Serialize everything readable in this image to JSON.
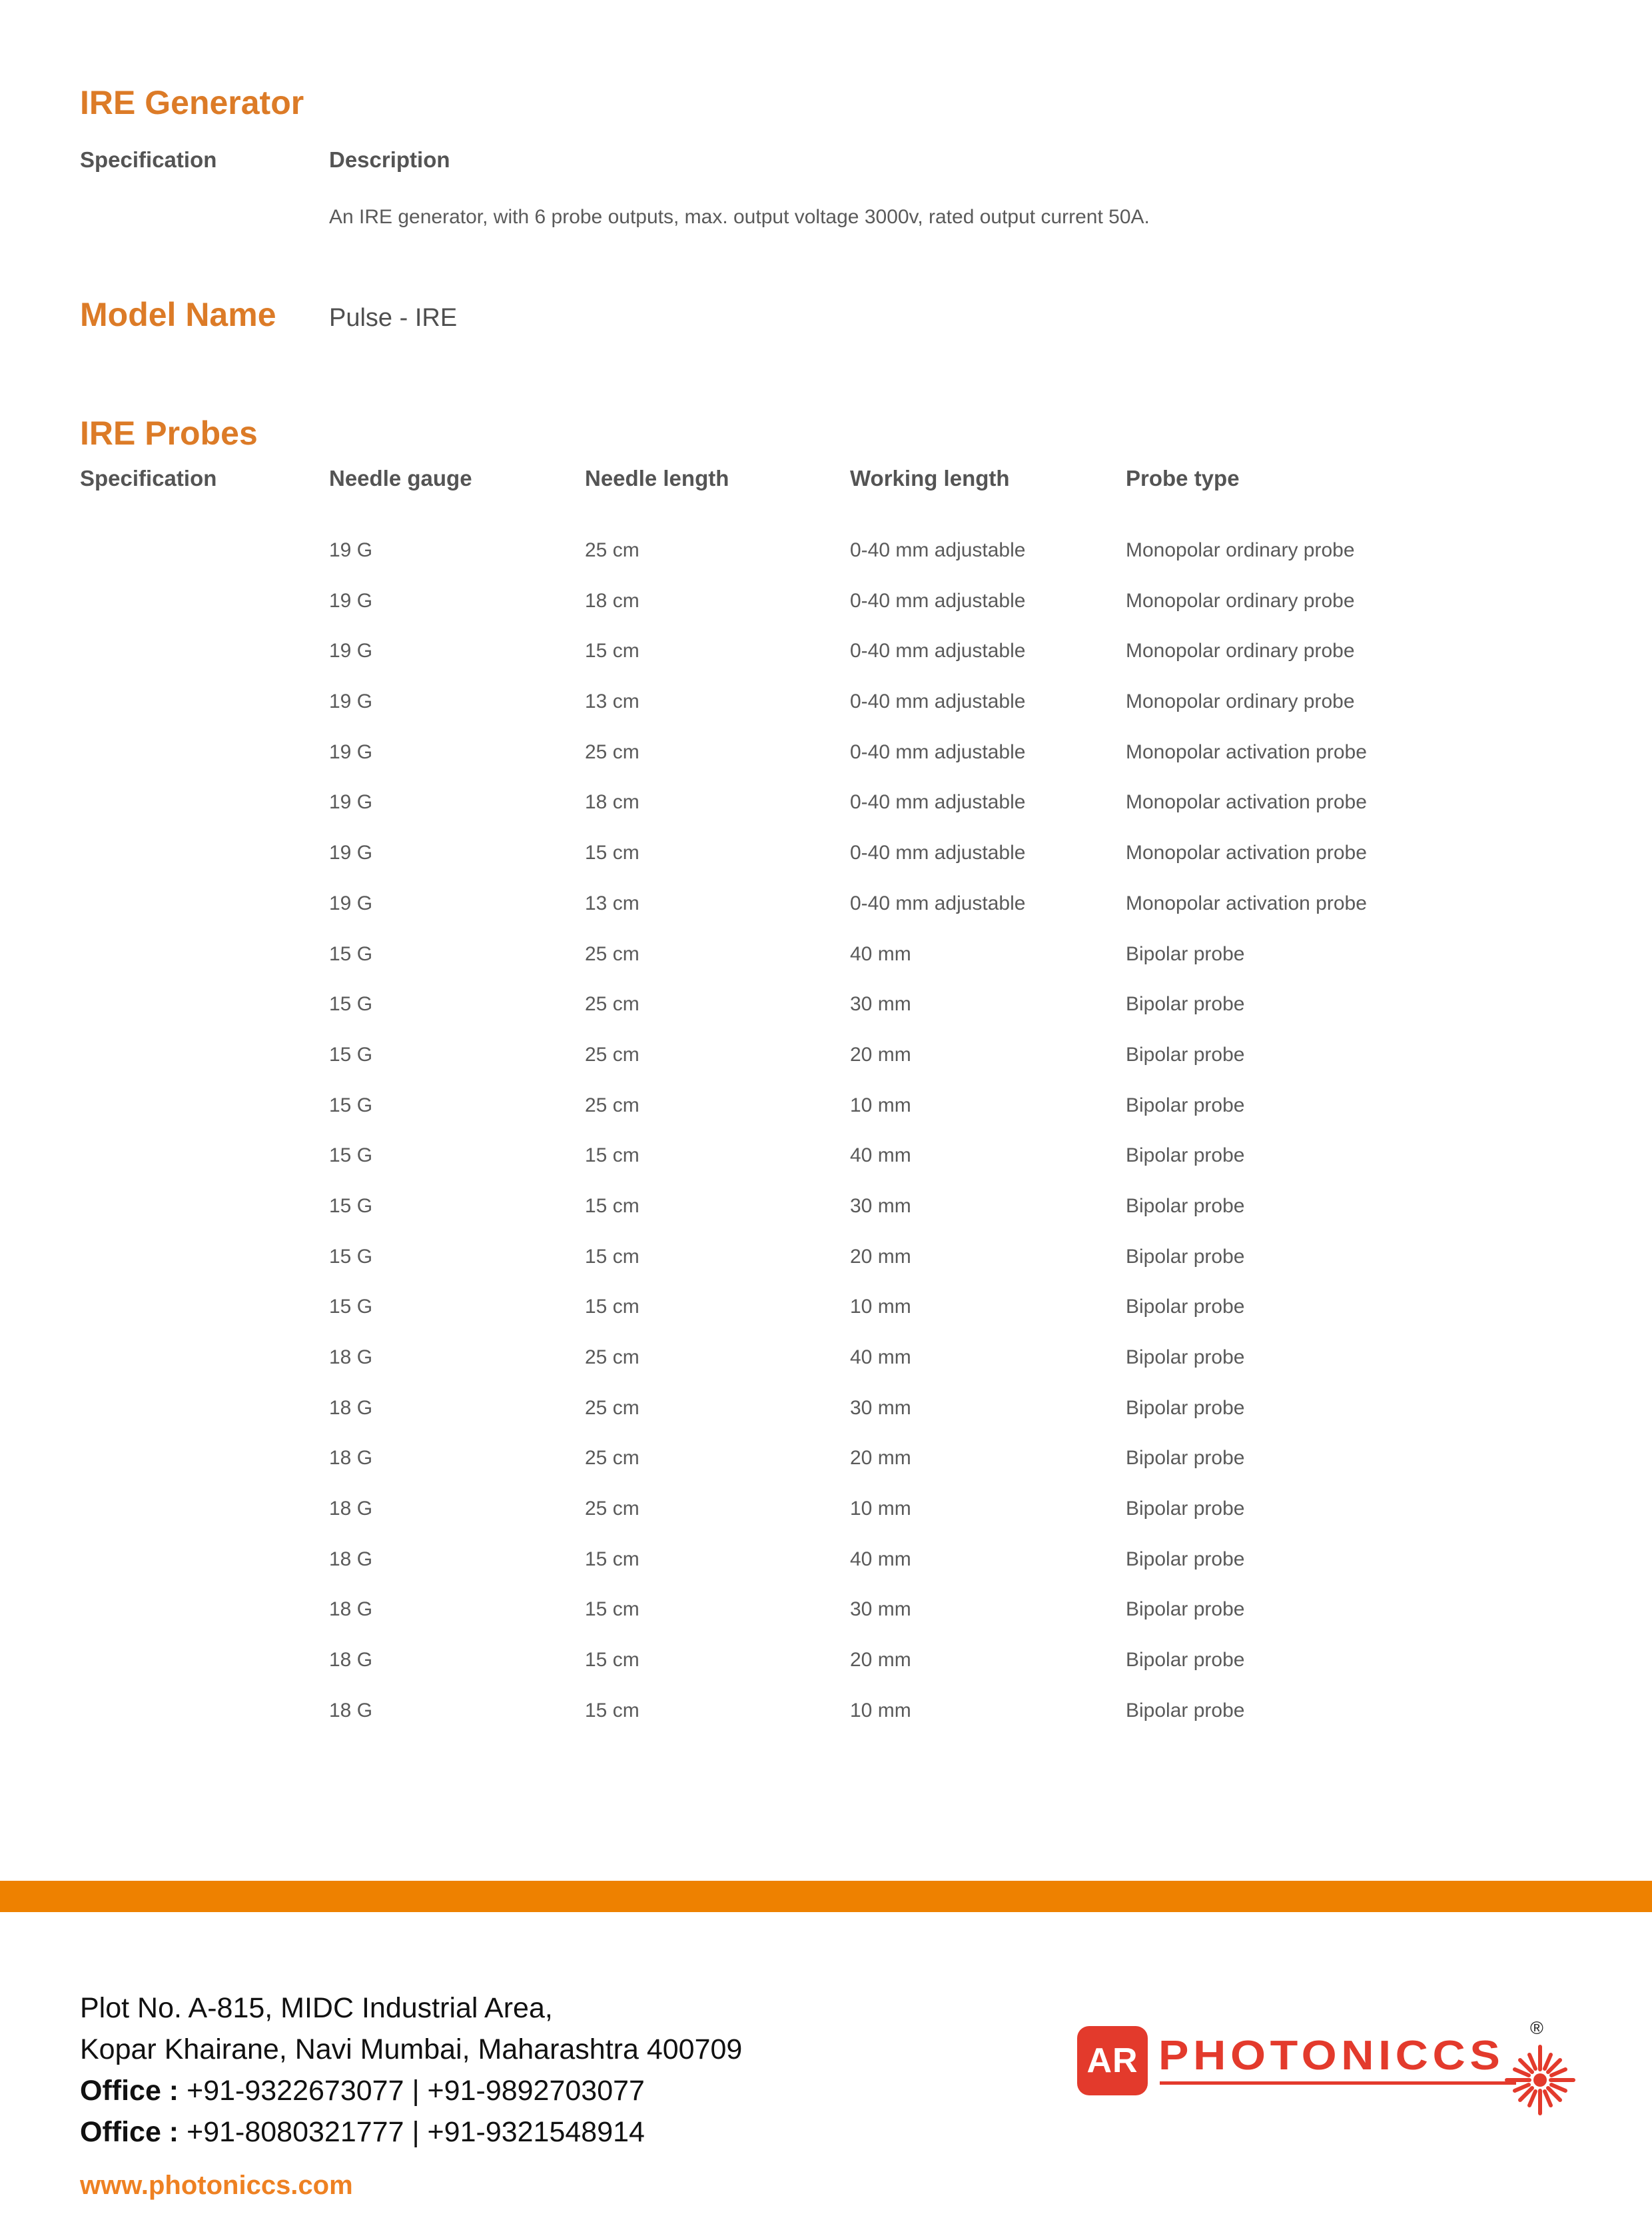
{
  "colors": {
    "heading_orange": "#DC7B27",
    "bar_orange": "#EE8100",
    "link_orange": "#EE8122",
    "logo_red": "#E33A2C",
    "table_header_gray": "#545454",
    "table_text_gray": "#5A5A5A"
  },
  "generator": {
    "heading": "IRE Generator",
    "col_specification": "Specification",
    "col_description": "Description",
    "description": "An IRE generator, with 6 probe outputs, max. output voltage 3000v, rated output current 50A.",
    "model_label": "Model Name",
    "model_value": "Pulse - IRE"
  },
  "probes": {
    "heading": "IRE Probes",
    "columns": [
      "Specification",
      "Needle gauge",
      "Needle length",
      "Working length",
      "Probe type"
    ],
    "rows": [
      [
        "19 G",
        "25 cm",
        "0-40 mm adjustable",
        "Monopolar ordinary probe"
      ],
      [
        "19 G",
        "18 cm",
        "0-40 mm adjustable",
        "Monopolar ordinary probe"
      ],
      [
        "19 G",
        "15 cm",
        "0-40 mm adjustable",
        "Monopolar ordinary probe"
      ],
      [
        "19 G",
        "13 cm",
        "0-40 mm adjustable",
        "Monopolar ordinary probe"
      ],
      [
        "19 G",
        "25 cm",
        "0-40 mm adjustable",
        "Monopolar activation probe"
      ],
      [
        "19 G",
        "18 cm",
        "0-40 mm adjustable",
        "Monopolar activation probe"
      ],
      [
        "19 G",
        "15 cm",
        "0-40 mm adjustable",
        "Monopolar activation probe"
      ],
      [
        "19 G",
        "13 cm",
        "0-40 mm adjustable",
        "Monopolar activation probe"
      ],
      [
        "15 G",
        "25 cm",
        "40 mm",
        "Bipolar probe"
      ],
      [
        "15 G",
        "25 cm",
        "30 mm",
        "Bipolar probe"
      ],
      [
        "15 G",
        "25 cm",
        "20 mm",
        "Bipolar probe"
      ],
      [
        "15 G",
        "25 cm",
        "10 mm",
        "Bipolar probe"
      ],
      [
        "15 G",
        "15 cm",
        "40 mm",
        "Bipolar probe"
      ],
      [
        "15 G",
        "15 cm",
        "30 mm",
        "Bipolar probe"
      ],
      [
        "15 G",
        "15 cm",
        "20 mm",
        "Bipolar probe"
      ],
      [
        "15 G",
        "15 cm",
        "10 mm",
        "Bipolar probe"
      ],
      [
        "18 G",
        "25 cm",
        "40 mm",
        "Bipolar probe"
      ],
      [
        "18 G",
        "25 cm",
        "30 mm",
        "Bipolar probe"
      ],
      [
        "18 G",
        "25 cm",
        "20 mm",
        "Bipolar probe"
      ],
      [
        "18 G",
        "25 cm",
        "10 mm",
        "Bipolar probe"
      ],
      [
        "18 G",
        "15 cm",
        "40 mm",
        "Bipolar probe"
      ],
      [
        "18 G",
        "15 cm",
        "30 mm",
        "Bipolar probe"
      ],
      [
        "18 G",
        "15 cm",
        "20 mm",
        "Bipolar probe"
      ],
      [
        "18 G",
        "15 cm",
        "10 mm",
        "Bipolar probe"
      ]
    ]
  },
  "footer": {
    "address_line1": "Plot No. A-815, MIDC Industrial Area,",
    "address_line2": "Kopar Khairane, Navi Mumbai, Maharashtra 400709",
    "office1_label": "Office :",
    "office1_numbers": " +91-9322673077 | +91-9892703077",
    "office2_label": "Office :",
    "office2_numbers": " +91-8080321777 | +91-9321548914",
    "website": "www.photoniccs.com",
    "logo": {
      "monogram": "AR",
      "wordmark": "PHOTONICCS",
      "registered_mark": "®"
    }
  }
}
